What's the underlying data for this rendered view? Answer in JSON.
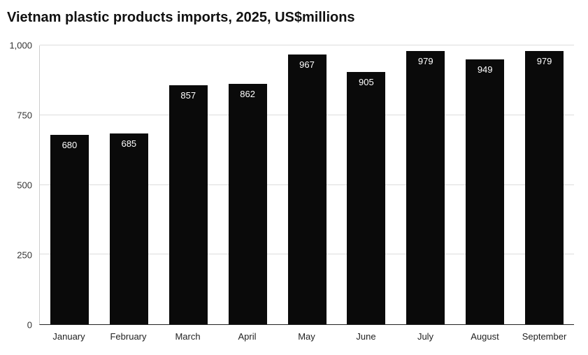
{
  "chart_data": {
    "type": "bar",
    "title": "Vietnam plastic products imports, 2025, US$millions",
    "categories": [
      "January",
      "February",
      "March",
      "April",
      "May",
      "June",
      "July",
      "August",
      "September"
    ],
    "values": [
      680,
      685,
      857,
      862,
      967,
      905,
      979,
      949,
      979
    ],
    "xlabel": "",
    "ylabel": "",
    "ylim": [
      0,
      1000
    ],
    "yticks": [
      0,
      250,
      500,
      750,
      1000
    ],
    "ytick_labels": [
      "0",
      "250",
      "500",
      "750",
      "1,000"
    ],
    "grid": true,
    "legend": "none",
    "colors": {
      "bar": "#0a0a0a",
      "value_label": "#ffffff",
      "axis_text": "#333333",
      "gridline": "#dcdcdc",
      "background": "#ffffff"
    }
  }
}
